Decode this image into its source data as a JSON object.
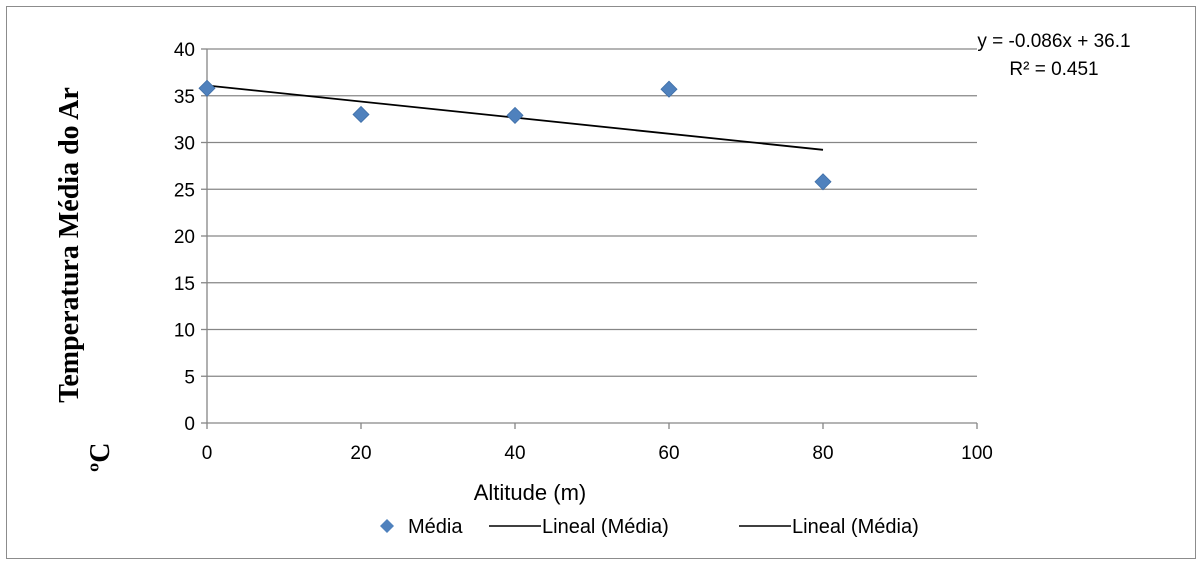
{
  "chart_data": {
    "type": "scatter",
    "title": "",
    "xlabel": "Altitude (m)",
    "ylabel_line1": "Temperatura Média do Ar",
    "ylabel_line2": "ºC",
    "xlim": [
      0,
      100
    ],
    "ylim": [
      0,
      40
    ],
    "xticks": [
      0,
      20,
      40,
      60,
      80,
      100
    ],
    "yticks": [
      0,
      5,
      10,
      15,
      20,
      25,
      30,
      35,
      40
    ],
    "grid": "horizontal",
    "legend_position": "bottom",
    "series": [
      {
        "name": "Média",
        "kind": "scatter",
        "marker": "diamond",
        "color": "#4f81bd",
        "x": [
          0,
          20,
          40,
          60,
          80
        ],
        "y": [
          35.8,
          33.0,
          32.9,
          35.7,
          25.8
        ]
      }
    ],
    "trendline": {
      "slope": -0.086,
      "intercept": 36.1,
      "x_range": [
        0,
        80
      ],
      "color": "#000000"
    },
    "annotations": {
      "equation": "y = -0.086x + 36.1",
      "r_squared": "R² = 0.451"
    },
    "legend": [
      {
        "label": "Média",
        "symbol": "diamond",
        "color": "#4f81bd"
      },
      {
        "label": "Lineal (Média)",
        "symbol": "line",
        "color": "#000000"
      },
      {
        "label": "Lineal (Média)",
        "symbol": "line",
        "color": "#000000"
      }
    ]
  }
}
